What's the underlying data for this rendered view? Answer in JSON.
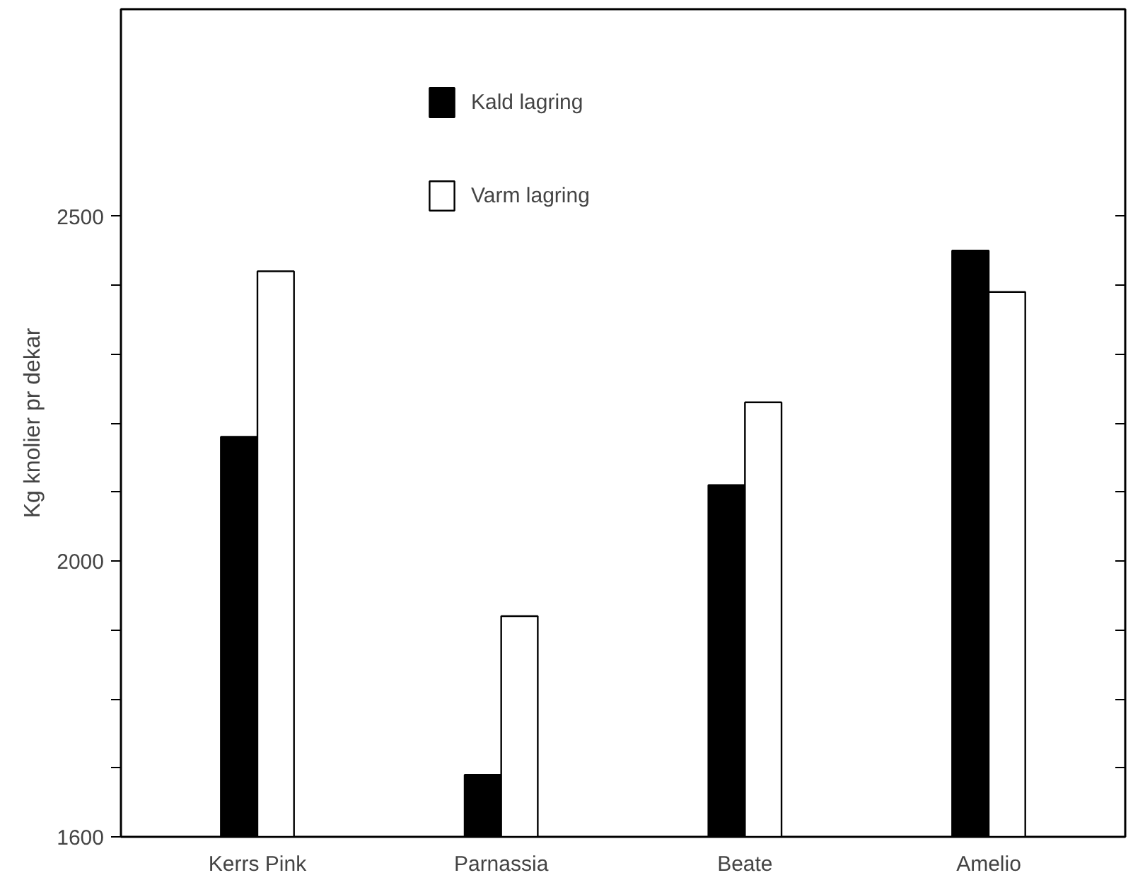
{
  "chart_data": {
    "type": "bar",
    "ylabel": "Kg knolier pr dekar",
    "categories": [
      "Kerrs Pink",
      "Parnassia",
      "Beate",
      "Amelio"
    ],
    "series": [
      {
        "name": "Kald lagring",
        "color": "#000000",
        "values": [
          2180,
          1690,
          2110,
          2450
        ]
      },
      {
        "name": "Varm lagring",
        "color": "#ffffff",
        "values": [
          2420,
          1920,
          2230,
          2390
        ]
      }
    ],
    "ylim": [
      1600,
      2800
    ],
    "yticks": [
      1600,
      {
        "value": 1700,
        "label": null
      },
      {
        "value": 1800,
        "label": null
      },
      {
        "value": 1900,
        "label": null
      },
      2000,
      {
        "value": 2100,
        "label": null
      },
      {
        "value": 2200,
        "label": null
      },
      {
        "value": 2300,
        "label": null
      },
      {
        "value": 2400,
        "label": null
      },
      2500
    ],
    "legend": "top",
    "grid": false
  }
}
